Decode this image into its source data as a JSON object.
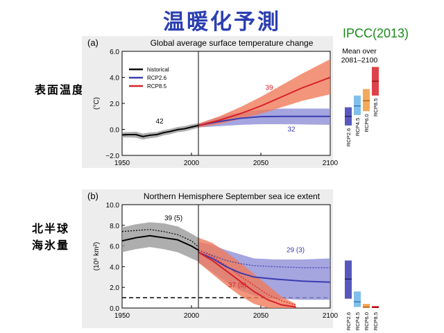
{
  "slide": {
    "title": "温暖化予測",
    "source": "IPCC(2013)",
    "label_temp": "表面温度",
    "label_ice_line1": "北半球",
    "label_ice_line2": "海氷量"
  },
  "colors": {
    "historical": "#000000",
    "rcp26": "#3b3bb0",
    "rcp45": "#6ab4e8",
    "rcp60": "#f09a3e",
    "rcp85": "#d8202a",
    "hist_band": "#9a9a9a",
    "rcp26_band": "#8f8fd8",
    "rcp85_band": "#f07a5a",
    "title_blue": "#2b3fb0",
    "source_green": "#1a8a1a"
  },
  "chart_data": [
    {
      "type": "line",
      "panel_label": "(a)",
      "title": "Global average surface temperature change",
      "xlabel": "",
      "ylabel": "(°C)",
      "xlim": [
        1950,
        2100
      ],
      "ylim": [
        -2.0,
        6.0
      ],
      "xticks": [
        1950,
        2000,
        2050,
        2100
      ],
      "yticks": [
        -2.0,
        0.0,
        2.0,
        4.0,
        6.0
      ],
      "ytick_labels": [
        "−2.0",
        "0.0",
        "2.0",
        "4.0",
        "6.0"
      ],
      "divider_year": 2005,
      "legend": [
        "historical",
        "RCP2.6",
        "RCP8.5"
      ],
      "series": [
        {
          "name": "historical",
          "x": [
            1950,
            1955,
            1960,
            1965,
            1970,
            1975,
            1980,
            1985,
            1990,
            1995,
            2000,
            2005
          ],
          "values": [
            -0.42,
            -0.4,
            -0.4,
            -0.55,
            -0.45,
            -0.4,
            -0.25,
            -0.15,
            -0.02,
            0.05,
            0.18,
            0.3
          ],
          "band_low": [
            -0.62,
            -0.62,
            -0.64,
            -0.78,
            -0.68,
            -0.62,
            -0.46,
            -0.36,
            -0.22,
            -0.15,
            -0.02,
            0.12
          ],
          "band_high": [
            -0.22,
            -0.2,
            -0.18,
            -0.32,
            -0.24,
            -0.2,
            -0.05,
            0.05,
            0.18,
            0.26,
            0.38,
            0.48
          ]
        },
        {
          "name": "RCP2.6",
          "x": [
            2005,
            2020,
            2035,
            2050,
            2065,
            2080,
            2100
          ],
          "values": [
            0.3,
            0.6,
            0.85,
            0.98,
            1.0,
            1.0,
            1.0
          ],
          "band_low": [
            0.15,
            0.25,
            0.35,
            0.4,
            0.4,
            0.38,
            0.35
          ],
          "band_high": [
            0.45,
            0.95,
            1.3,
            1.5,
            1.6,
            1.6,
            1.6
          ]
        },
        {
          "name": "RCP8.5",
          "x": [
            2005,
            2020,
            2035,
            2050,
            2065,
            2080,
            2100
          ],
          "values": [
            0.3,
            0.7,
            1.2,
            1.8,
            2.5,
            3.2,
            4.0
          ],
          "band_low": [
            0.15,
            0.4,
            0.8,
            1.2,
            1.7,
            2.2,
            2.7
          ],
          "band_high": [
            0.45,
            1.0,
            1.7,
            2.5,
            3.4,
            4.3,
            5.4
          ]
        }
      ],
      "annotations": [
        {
          "text": "42",
          "x": 1977,
          "y": 0.45,
          "color": "historical"
        },
        {
          "text": "39",
          "x": 2056,
          "y": 3.05,
          "color": "rcp85"
        },
        {
          "text": "32",
          "x": 2072,
          "y": -0.15,
          "color": "rcp26"
        }
      ],
      "mean_over_title": [
        "Mean over",
        "2081–2100"
      ],
      "mean_over": [
        {
          "name": "RCP2.6",
          "low": 0.3,
          "high": 1.7,
          "mean": 1.0,
          "color": "rcp26"
        },
        {
          "name": "RCP4.5",
          "low": 1.1,
          "high": 2.6,
          "mean": 1.8,
          "color": "rcp45"
        },
        {
          "name": "RCP6.0",
          "low": 1.4,
          "high": 3.1,
          "mean": 2.2,
          "color": "rcp60"
        },
        {
          "name": "RCP8.5",
          "low": 2.6,
          "high": 4.8,
          "mean": 3.7,
          "color": "rcp85"
        }
      ]
    },
    {
      "type": "line",
      "panel_label": "(b)",
      "title": "Northern Hemisphere September sea ice extent",
      "xlabel": "",
      "ylabel": "(10⁶ km²)",
      "xlim": [
        1950,
        2100
      ],
      "ylim": [
        0.0,
        10.0
      ],
      "xticks": [
        1950,
        2000,
        2050,
        2100
      ],
      "yticks": [
        0.0,
        2.0,
        4.0,
        6.0,
        8.0,
        10.0
      ],
      "ytick_labels": [
        "0.0",
        "2.0",
        "4.0",
        "6.0",
        "8.0",
        "10.0"
      ],
      "divider_year": 2005,
      "threshold": 1.0,
      "series": [
        {
          "name": "historical",
          "x": [
            1950,
            1960,
            1970,
            1980,
            1990,
            2000,
            2005
          ],
          "values": [
            6.5,
            6.8,
            7.0,
            6.8,
            6.6,
            6.0,
            5.6
          ],
          "band_low": [
            5.4,
            5.7,
            5.9,
            5.7,
            5.4,
            4.8,
            4.5
          ],
          "band_high": [
            7.8,
            8.1,
            8.3,
            8.2,
            7.9,
            7.2,
            6.8
          ],
          "observed": [
            7.4,
            7.5,
            7.6,
            7.4,
            7.1,
            6.5,
            5.9
          ]
        },
        {
          "name": "RCP2.6",
          "x": [
            2005,
            2015,
            2025,
            2035,
            2045,
            2060,
            2080,
            2100
          ],
          "values": [
            5.4,
            4.8,
            4.0,
            3.4,
            3.0,
            2.8,
            2.6,
            2.5
          ],
          "band_low": [
            4.4,
            3.5,
            2.5,
            1.7,
            1.2,
            0.9,
            0.8,
            0.8
          ],
          "band_high": [
            6.4,
            6.1,
            5.6,
            5.2,
            4.8,
            4.7,
            4.7,
            4.8
          ],
          "subset": [
            5.6,
            5.1,
            4.6,
            4.3,
            4.1,
            4.0,
            3.9,
            3.9
          ]
        },
        {
          "name": "RCP8.5",
          "x": [
            2005,
            2015,
            2025,
            2035,
            2045,
            2055,
            2065,
            2075
          ],
          "values": [
            5.4,
            4.6,
            3.6,
            2.6,
            1.6,
            0.8,
            0.3,
            0.1
          ],
          "band_low": [
            4.4,
            3.3,
            2.2,
            1.2,
            0.4,
            0.0,
            0.0,
            0.0
          ],
          "band_high": [
            6.8,
            6.3,
            5.4,
            4.4,
            3.3,
            2.2,
            1.1,
            0.4
          ],
          "subset": [
            5.6,
            5.0,
            4.1,
            3.1,
            2.2,
            1.3,
            0.7,
            0.3
          ]
        }
      ],
      "annotations": [
        {
          "text": "39 (5)",
          "x": 1987,
          "y": 8.5,
          "color": "historical"
        },
        {
          "text": "29 (3)",
          "x": 2075,
          "y": 5.4,
          "color": "rcp26"
        },
        {
          "text": "37 (5)",
          "x": 2033,
          "y": 2.0,
          "color": "rcp85"
        }
      ],
      "mean_over": [
        {
          "name": "RCP2.6",
          "low": 0.9,
          "high": 4.6,
          "mean": 2.8,
          "color": "rcp26"
        },
        {
          "name": "RCP4.5",
          "low": 0.1,
          "high": 1.6,
          "mean": 0.6,
          "color": "rcp45"
        },
        {
          "name": "RCP6.0",
          "low": 0.0,
          "high": 0.4,
          "mean": 0.1,
          "color": "rcp60"
        },
        {
          "name": "RCP8.5",
          "low": 0.0,
          "high": 0.2,
          "mean": 0.05,
          "color": "rcp85"
        }
      ]
    }
  ]
}
